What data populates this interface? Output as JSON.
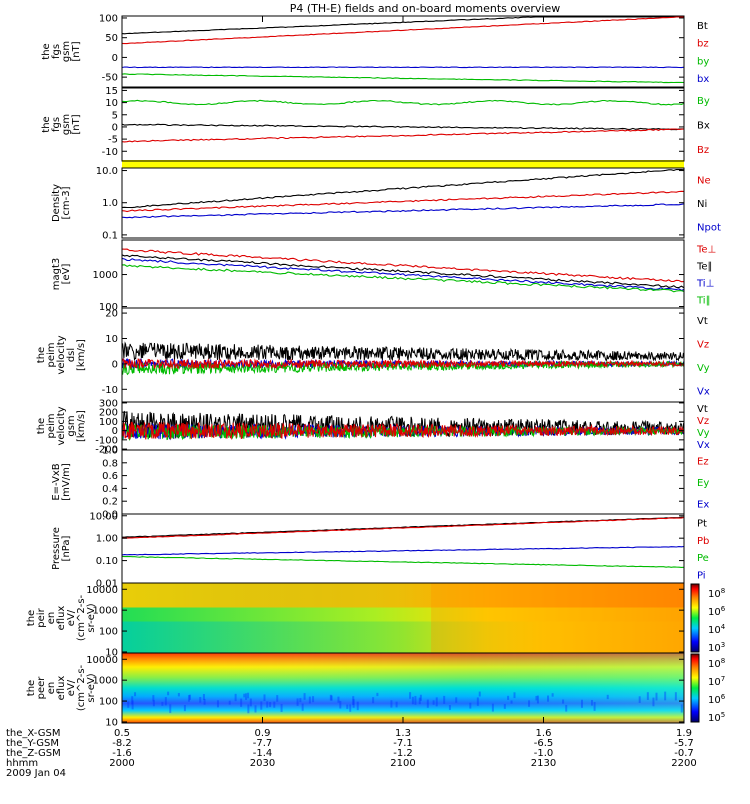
{
  "title": "P4 (TH-E) fields and on-board moments overview",
  "orbit_rows": [
    {
      "label": "the_X-GSM",
      "values": [
        "0.5",
        "0.9",
        "1.3",
        "1.6",
        "1.9"
      ]
    },
    {
      "label": "the_Y-GSM",
      "values": [
        "-8.2",
        "-7.7",
        "-7.1",
        "-6.5",
        "-5.7"
      ]
    },
    {
      "label": "the_Z-GSM",
      "values": [
        "-1.6",
        "-1.4",
        "-1.2",
        "-1.0",
        "-0.7"
      ]
    },
    {
      "label": "hhmm",
      "values": [
        "2000",
        "2030",
        "2100",
        "2130",
        "2200"
      ]
    }
  ],
  "date_label": "2009 Jan 04",
  "chart_data": [
    {
      "type": "line",
      "ylabel": [
        "the",
        "fgs",
        "gsm",
        "[nT]"
      ],
      "yticks": [
        "100",
        "50",
        "0",
        "-50"
      ],
      "ylim": [
        -75,
        105
      ],
      "series": [
        {
          "name": "Bt",
          "color": "#000000",
          "start": 60,
          "end": 118
        },
        {
          "name": "bz",
          "color": "#dd0000",
          "start": 35,
          "end": 103
        },
        {
          "name": "by",
          "color": "#00bb00",
          "start": -42,
          "end": -64
        },
        {
          "name": "bx",
          "color": "#0000cc",
          "start": -25,
          "end": -25
        }
      ]
    },
    {
      "type": "line",
      "ylabel": [
        "the",
        "fgs",
        "gsm",
        "[nT]"
      ],
      "yticks": [
        "15",
        "10",
        "5",
        "0",
        "-5",
        "-10"
      ],
      "ylim": [
        -14,
        16
      ],
      "series": [
        {
          "name": "By",
          "color": "#00bb00",
          "start": 10,
          "end": 10
        },
        {
          "name": "Bx",
          "color": "#000000",
          "start": 1,
          "end": -1
        },
        {
          "name": "Bz",
          "color": "#dd0000",
          "start": -6,
          "end": -1
        }
      ]
    },
    {
      "type": "line",
      "ylabel": [
        "Density",
        "[cm-3]"
      ],
      "yticks": [
        "10.0",
        "1.0",
        "0.1"
      ],
      "scale": "log",
      "ylim": [
        0.08,
        12
      ],
      "series": [
        {
          "name": "Ne",
          "color": "#dd0000",
          "start": 0.55,
          "end": 2.2
        },
        {
          "name": "Ni",
          "color": "#000000",
          "start": 0.7,
          "end": 11
        },
        {
          "name": "Npot",
          "color": "#0000cc",
          "start": 0.35,
          "end": 0.9
        }
      ]
    },
    {
      "type": "line",
      "ylabel": [
        "magt3",
        "[eV]"
      ],
      "yticks": [
        "1000",
        "100"
      ],
      "scale": "log",
      "ylim": [
        90,
        12000
      ],
      "series": [
        {
          "name": "Te⊥",
          "color": "#dd0000",
          "start": 6000,
          "end": 600
        },
        {
          "name": "Te∥",
          "color": "#000000",
          "start": 4000,
          "end": 400
        },
        {
          "name": "Ti⊥",
          "color": "#0000cc",
          "start": 3000,
          "end": 330
        },
        {
          "name": "Ti∥",
          "color": "#00bb00",
          "start": 1900,
          "end": 300
        }
      ]
    },
    {
      "type": "line",
      "ylabel": [
        "the",
        "peim",
        "velocity",
        "dsl",
        "[km/s]"
      ],
      "yticks": [
        "20",
        "10",
        "0",
        "-10"
      ],
      "ylim": [
        -15,
        22
      ],
      "series": [
        {
          "name": "Vt",
          "color": "#000000",
          "start": 5,
          "end": 3
        },
        {
          "name": "Vz",
          "color": "#dd0000",
          "start": 0,
          "end": 0
        },
        {
          "name": "Vy",
          "color": "#00bb00",
          "start": -2,
          "end": 0
        },
        {
          "name": "Vx",
          "color": "#0000cc",
          "start": 0,
          "end": 0
        }
      ]
    },
    {
      "type": "line",
      "ylabel": [
        "the",
        "peim",
        "velocity",
        "gsm",
        "[km/s]"
      ],
      "yticks": [
        "300",
        "200",
        "100",
        "0",
        "-100",
        "-200"
      ],
      "ylim": [
        -210,
        310
      ],
      "series": [
        {
          "name": "Vt",
          "color": "#000000",
          "start": 60,
          "end": 25
        },
        {
          "name": "Vz",
          "color": "#dd0000",
          "start": 0,
          "end": 0
        },
        {
          "name": "Vy",
          "color": "#00bb00",
          "start": -15,
          "end": -5
        },
        {
          "name": "Vx",
          "color": "#0000cc",
          "start": -10,
          "end": -5
        }
      ]
    },
    {
      "type": "line",
      "ylabel": [
        "E=-VxB",
        "[mV/m]"
      ],
      "yticks": [
        "1.0",
        "0.8",
        "0.6",
        "0.4",
        "0.2",
        "0.0"
      ],
      "ylim": [
        0,
        1
      ],
      "series": [
        {
          "name": "Ez",
          "color": "#dd0000",
          "values": []
        },
        {
          "name": "Ey",
          "color": "#00bb00",
          "values": []
        },
        {
          "name": "Ex",
          "color": "#0000cc",
          "values": []
        }
      ]
    },
    {
      "type": "line",
      "ylabel": [
        "Pressure",
        "[nPa]"
      ],
      "yticks": [
        "10.00",
        "1.00",
        "0.10",
        "0.01"
      ],
      "scale": "log",
      "ylim": [
        0.01,
        12
      ],
      "series": [
        {
          "name": "Pt",
          "color": "#000000",
          "start": 1.1,
          "end": 8.5
        },
        {
          "name": "Pb",
          "color": "#dd0000",
          "start": 1.0,
          "end": 8.2
        },
        {
          "name": "Pe",
          "color": "#00bb00",
          "start": 0.15,
          "end": 0.05
        },
        {
          "name": "Pi",
          "color": "#0000cc",
          "start": 0.18,
          "end": 0.42
        }
      ]
    },
    {
      "type": "heatmap",
      "ylabel": [
        "the",
        "peir",
        "en",
        "eflux",
        "eV/",
        "(cm^2-s-",
        "sr-eV)"
      ],
      "yticks": [
        "10000",
        "1000",
        "100",
        "10"
      ],
      "colorbar_ticks": [
        "10^8",
        "10^6",
        "10^4",
        "10^3"
      ],
      "colormap": [
        "#000066",
        "#0000ff",
        "#00aaff",
        "#00ffcc",
        "#00ee00",
        "#ffff00",
        "#ff9900",
        "#ff0000",
        "#880000"
      ]
    },
    {
      "type": "heatmap",
      "ylabel": [
        "the",
        "peer",
        "en",
        "eflux",
        "eV/",
        "(cm^2-s-",
        "sr-eV)"
      ],
      "yticks": [
        "10000",
        "1000",
        "100",
        "10"
      ],
      "colorbar_ticks": [
        "10^8",
        "10^7",
        "10^6",
        "10^5"
      ],
      "colormap": [
        "#000066",
        "#0000ff",
        "#00aaff",
        "#00ffcc",
        "#00ee00",
        "#ffff00",
        "#ff9900",
        "#ff0000",
        "#880000"
      ]
    }
  ]
}
